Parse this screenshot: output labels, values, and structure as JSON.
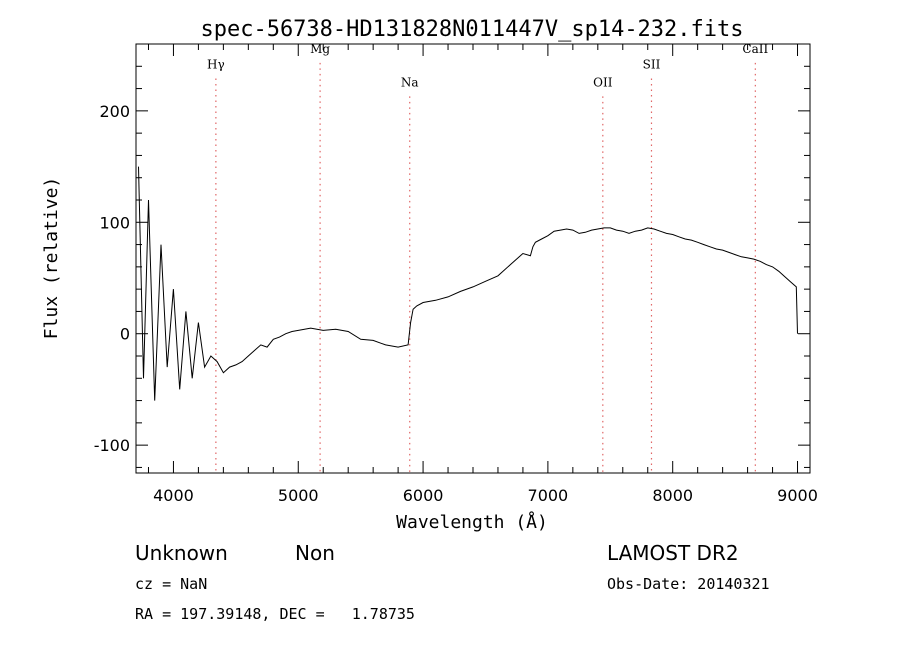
{
  "chart_data": {
    "type": "line",
    "title": "spec-56738-HD131828N011447V_sp14-232.fits",
    "xlabel": "Wavelength (Å)",
    "ylabel": "Flux (relative)",
    "xlim": [
      3700,
      9100
    ],
    "ylim": [
      -125,
      260
    ],
    "x_ticks": [
      4000,
      5000,
      6000,
      7000,
      8000,
      9000
    ],
    "y_ticks": [
      -100,
      0,
      100,
      200
    ],
    "grid": false,
    "line_color": "#000000",
    "marker_color": "#e06666",
    "lines": [
      {
        "label": "Hγ",
        "x": 4340,
        "label_y": 238
      },
      {
        "label": "Mg",
        "x": 5175,
        "label_y": 252
      },
      {
        "label": "Na",
        "x": 5893,
        "label_y": 222
      },
      {
        "label": "OII",
        "x": 7440,
        "label_y": 222
      },
      {
        "label": "SII",
        "x": 7830,
        "label_y": 238
      },
      {
        "label": "CaII",
        "x": 8662,
        "label_y": 252
      }
    ],
    "series": [
      {
        "name": "spectrum",
        "x": [
          3720,
          3760,
          3800,
          3850,
          3900,
          3950,
          4000,
          4050,
          4100,
          4150,
          4200,
          4250,
          4300,
          4350,
          4400,
          4450,
          4500,
          4550,
          4600,
          4650,
          4700,
          4750,
          4800,
          4850,
          4900,
          4950,
          5000,
          5100,
          5200,
          5300,
          5400,
          5500,
          5600,
          5700,
          5800,
          5880,
          5900,
          5920,
          5950,
          6000,
          6100,
          6200,
          6300,
          6400,
          6500,
          6600,
          6700,
          6800,
          6860,
          6880,
          6900,
          6950,
          7000,
          7050,
          7100,
          7150,
          7200,
          7250,
          7300,
          7350,
          7400,
          7450,
          7500,
          7550,
          7600,
          7650,
          7700,
          7750,
          7800,
          7850,
          7900,
          7950,
          8000,
          8050,
          8100,
          8150,
          8200,
          8250,
          8300,
          8350,
          8400,
          8450,
          8500,
          8550,
          8600,
          8650,
          8700,
          8750,
          8800,
          8850,
          8900,
          8950,
          8990,
          9000
        ],
        "y": [
          150,
          -40,
          120,
          -60,
          80,
          -30,
          40,
          -50,
          20,
          -40,
          10,
          -30,
          -20,
          -25,
          -35,
          -30,
          -28,
          -25,
          -20,
          -15,
          -10,
          -12,
          -5,
          -3,
          0,
          2,
          3,
          5,
          3,
          4,
          2,
          -5,
          -6,
          -10,
          -12,
          -10,
          10,
          22,
          25,
          28,
          30,
          33,
          38,
          42,
          47,
          52,
          62,
          72,
          70,
          78,
          82,
          85,
          88,
          92,
          93,
          94,
          93,
          90,
          91,
          93,
          94,
          95,
          95,
          93,
          92,
          90,
          92,
          93,
          95,
          94,
          92,
          90,
          89,
          87,
          85,
          84,
          82,
          80,
          78,
          76,
          75,
          73,
          71,
          69,
          68,
          67,
          65,
          62,
          60,
          56,
          51,
          46,
          42,
          0
        ]
      }
    ]
  },
  "footer": {
    "class_label": "Unknown",
    "subclass_label": "Non",
    "cz_text": "cz = NaN",
    "coords_text": "RA = 197.39148, DEC =   1.78735",
    "survey": "LAMOST DR2",
    "obs_date": "Obs-Date: 20140321"
  }
}
